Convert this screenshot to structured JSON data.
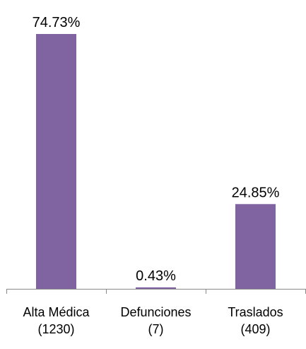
{
  "chart_data": {
    "type": "bar",
    "categories": [
      [
        "Alta Médica",
        "(1230)"
      ],
      [
        "Defunciones",
        "(7)"
      ],
      [
        "Traslados",
        "(409)"
      ]
    ],
    "values": [
      74.73,
      0.43,
      24.85
    ],
    "value_labels": [
      "74.73%",
      "0.43%",
      "24.85%"
    ],
    "color": "#8064a2"
  }
}
